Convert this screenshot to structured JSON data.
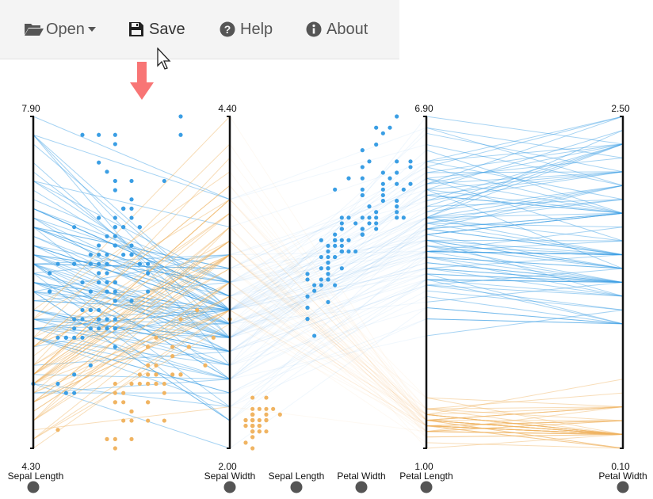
{
  "toolbar": {
    "open_label": "Open",
    "save_label": "Save",
    "help_label": "Help",
    "about_label": "About"
  },
  "colors": {
    "series_blue": "#3a9ee4",
    "series_orange": "#f0b462",
    "arrow": "#f87575",
    "axis": "#111111",
    "handle": "#555555"
  },
  "chart_data": {
    "type": "parallel-coordinates with embedded scatter plot",
    "axes": [
      {
        "label": "Sepal Length",
        "max": "7.90",
        "min": "4.30"
      },
      {
        "label": "Sepal Width",
        "max": "4.40",
        "min": "2.00"
      },
      {
        "label": "Petal Length",
        "max": "6.90",
        "min": "1.00"
      },
      {
        "label": "Petal Width",
        "max": "2.50",
        "min": "0.10"
      }
    ],
    "scatter_axis_labels": [
      "Sepal Length",
      "Petal Width"
    ],
    "series": [
      {
        "color": "#3a9ee4",
        "lines": [
          [
            7.9,
            3.8,
            6.4,
            2.0
          ],
          [
            7.7,
            3.8,
            6.7,
            2.2
          ],
          [
            7.7,
            2.6,
            6.9,
            2.3
          ],
          [
            7.7,
            2.8,
            6.7,
            2.0
          ],
          [
            7.7,
            3.0,
            6.1,
            2.3
          ],
          [
            7.6,
            3.0,
            6.6,
            2.1
          ],
          [
            7.4,
            2.8,
            6.1,
            1.9
          ],
          [
            7.3,
            2.9,
            6.3,
            1.8
          ],
          [
            7.2,
            3.6,
            6.1,
            2.5
          ],
          [
            7.2,
            3.2,
            6.0,
            1.8
          ],
          [
            7.2,
            3.0,
            5.8,
            1.6
          ],
          [
            7.1,
            3.0,
            5.9,
            2.1
          ],
          [
            7.0,
            3.2,
            4.7,
            1.4
          ],
          [
            6.9,
            3.1,
            4.9,
            1.5
          ],
          [
            6.9,
            3.2,
            5.7,
            2.3
          ],
          [
            6.9,
            3.1,
            5.4,
            2.1
          ],
          [
            6.9,
            3.1,
            5.1,
            2.3
          ],
          [
            6.8,
            2.8,
            4.8,
            1.4
          ],
          [
            6.8,
            3.0,
            5.5,
            2.1
          ],
          [
            6.8,
            3.2,
            5.9,
            2.3
          ],
          [
            6.7,
            3.1,
            4.4,
            1.4
          ],
          [
            6.7,
            3.0,
            5.0,
            1.7
          ],
          [
            6.7,
            3.1,
            4.7,
            1.5
          ],
          [
            6.7,
            2.5,
            5.8,
            1.8
          ],
          [
            6.7,
            3.3,
            5.7,
            2.1
          ],
          [
            6.7,
            3.3,
            5.7,
            2.5
          ],
          [
            6.7,
            3.0,
            5.2,
            2.3
          ],
          [
            6.6,
            2.9,
            4.6,
            1.3
          ],
          [
            6.6,
            3.0,
            4.4,
            1.4
          ],
          [
            6.5,
            2.8,
            4.6,
            1.5
          ],
          [
            6.5,
            3.0,
            5.8,
            2.2
          ],
          [
            6.5,
            3.2,
            5.1,
            2.0
          ],
          [
            6.5,
            3.0,
            5.5,
            1.8
          ],
          [
            6.5,
            3.0,
            5.2,
            2.0
          ],
          [
            6.4,
            3.2,
            4.5,
            1.5
          ],
          [
            6.4,
            2.9,
            4.3,
            1.3
          ],
          [
            6.4,
            2.7,
            5.3,
            1.9
          ],
          [
            6.4,
            3.2,
            5.3,
            2.3
          ],
          [
            6.4,
            2.8,
            5.6,
            2.1
          ],
          [
            6.4,
            3.1,
            5.5,
            1.8
          ],
          [
            6.3,
            3.3,
            4.7,
            1.6
          ],
          [
            6.3,
            2.5,
            4.9,
            1.5
          ],
          [
            6.3,
            2.3,
            4.4,
            1.3
          ],
          [
            6.3,
            3.3,
            6.0,
            2.5
          ],
          [
            6.3,
            2.9,
            5.6,
            1.8
          ],
          [
            6.3,
            2.7,
            4.9,
            1.8
          ],
          [
            6.3,
            2.8,
            5.1,
            1.5
          ],
          [
            6.3,
            3.4,
            5.6,
            2.4
          ],
          [
            6.3,
            2.5,
            5.0,
            1.9
          ],
          [
            6.2,
            2.2,
            4.5,
            1.5
          ],
          [
            6.2,
            2.9,
            4.3,
            1.3
          ],
          [
            6.2,
            2.8,
            4.8,
            1.8
          ],
          [
            6.2,
            3.4,
            5.4,
            2.3
          ],
          [
            6.1,
            2.9,
            4.7,
            1.4
          ],
          [
            6.1,
            2.8,
            4.0,
            1.3
          ],
          [
            6.1,
            2.8,
            4.7,
            1.2
          ],
          [
            6.1,
            3.0,
            4.6,
            1.4
          ],
          [
            6.1,
            3.0,
            4.9,
            1.8
          ],
          [
            6.1,
            2.6,
            5.6,
            1.4
          ],
          [
            6.0,
            2.2,
            4.0,
            1.0
          ],
          [
            6.0,
            2.9,
            4.5,
            1.5
          ],
          [
            6.0,
            2.7,
            5.1,
            1.6
          ],
          [
            6.0,
            3.4,
            4.5,
            1.6
          ],
          [
            6.0,
            2.2,
            5.0,
            1.5
          ],
          [
            6.0,
            3.0,
            4.8,
            1.8
          ],
          [
            5.9,
            3.0,
            4.2,
            1.5
          ],
          [
            5.9,
            3.2,
            4.8,
            1.8
          ],
          [
            5.9,
            3.0,
            5.1,
            1.8
          ],
          [
            5.8,
            2.7,
            4.1,
            1.0
          ],
          [
            5.8,
            2.7,
            3.9,
            1.2
          ],
          [
            5.8,
            2.6,
            4.0,
            1.2
          ],
          [
            5.8,
            2.7,
            5.1,
            1.9
          ],
          [
            5.8,
            2.8,
            5.1,
            2.4
          ],
          [
            5.7,
            2.8,
            4.5,
            1.3
          ],
          [
            5.7,
            2.6,
            3.5,
            1.0
          ],
          [
            5.7,
            3.0,
            4.2,
            1.2
          ],
          [
            5.7,
            2.9,
            4.2,
            1.3
          ],
          [
            5.7,
            2.8,
            4.1,
            1.3
          ],
          [
            5.7,
            2.5,
            5.0,
            2.0
          ],
          [
            5.6,
            2.9,
            3.6,
            1.3
          ],
          [
            5.6,
            3.0,
            4.5,
            1.5
          ],
          [
            5.6,
            2.5,
            3.9,
            1.1
          ],
          [
            5.6,
            3.0,
            4.1,
            1.3
          ],
          [
            5.6,
            2.7,
            4.2,
            1.3
          ],
          [
            5.6,
            2.8,
            4.9,
            2.0
          ],
          [
            5.5,
            2.3,
            4.0,
            1.3
          ],
          [
            5.5,
            2.4,
            3.8,
            1.1
          ],
          [
            5.5,
            2.4,
            3.7,
            1.0
          ],
          [
            5.5,
            2.5,
            4.0,
            1.3
          ],
          [
            5.5,
            2.6,
            4.4,
            1.2
          ],
          [
            5.4,
            3.0,
            4.5,
            1.5
          ],
          [
            5.2,
            2.7,
            3.9,
            1.4
          ],
          [
            5.1,
            2.5,
            3.0,
            1.1
          ],
          [
            5.0,
            2.0,
            3.5,
            1.0
          ],
          [
            5.0,
            2.3,
            3.3,
            1.0
          ],
          [
            4.9,
            2.4,
            3.3,
            1.0
          ],
          [
            4.9,
            2.5,
            4.5,
            1.7
          ]
        ]
      },
      {
        "color": "#f0b462",
        "lines": [
          [
            5.8,
            4.0,
            1.2,
            0.2
          ],
          [
            5.7,
            4.4,
            1.5,
            0.4
          ],
          [
            5.7,
            3.8,
            1.7,
            0.3
          ],
          [
            5.5,
            4.2,
            1.4,
            0.2
          ],
          [
            5.5,
            3.5,
            1.3,
            0.2
          ],
          [
            5.4,
            3.9,
            1.7,
            0.4
          ],
          [
            5.4,
            3.7,
            1.5,
            0.2
          ],
          [
            5.4,
            3.9,
            1.3,
            0.4
          ],
          [
            5.4,
            3.4,
            1.7,
            0.2
          ],
          [
            5.4,
            3.4,
            1.5,
            0.4
          ],
          [
            5.3,
            3.7,
            1.5,
            0.2
          ],
          [
            5.2,
            3.5,
            1.5,
            0.2
          ],
          [
            5.2,
            3.4,
            1.4,
            0.2
          ],
          [
            5.2,
            4.1,
            1.5,
            0.1
          ],
          [
            5.1,
            3.5,
            1.4,
            0.2
          ],
          [
            5.1,
            3.5,
            1.4,
            0.3
          ],
          [
            5.1,
            3.8,
            1.5,
            0.3
          ],
          [
            5.1,
            3.7,
            1.5,
            0.4
          ],
          [
            5.1,
            3.3,
            1.7,
            0.5
          ],
          [
            5.1,
            3.4,
            1.5,
            0.2
          ],
          [
            5.1,
            3.8,
            1.9,
            0.4
          ],
          [
            5.1,
            3.8,
            1.6,
            0.2
          ],
          [
            5.0,
            3.6,
            1.4,
            0.2
          ],
          [
            5.0,
            3.4,
            1.5,
            0.2
          ],
          [
            5.0,
            3.0,
            1.6,
            0.2
          ],
          [
            5.0,
            3.4,
            1.6,
            0.4
          ],
          [
            5.0,
            3.2,
            1.2,
            0.2
          ],
          [
            5.0,
            3.5,
            1.3,
            0.3
          ],
          [
            5.0,
            3.5,
            1.6,
            0.6
          ],
          [
            5.0,
            3.3,
            1.4,
            0.2
          ],
          [
            4.9,
            3.0,
            1.4,
            0.2
          ],
          [
            4.9,
            3.1,
            1.5,
            0.1
          ],
          [
            4.9,
            3.6,
            1.4,
            0.1
          ],
          [
            4.8,
            3.4,
            1.6,
            0.2
          ],
          [
            4.8,
            3.0,
            1.4,
            0.1
          ],
          [
            4.8,
            3.4,
            1.9,
            0.2
          ],
          [
            4.8,
            3.1,
            1.6,
            0.2
          ],
          [
            4.8,
            3.0,
            1.4,
            0.3
          ],
          [
            4.7,
            3.2,
            1.3,
            0.2
          ],
          [
            4.7,
            3.2,
            1.6,
            0.2
          ],
          [
            4.6,
            3.1,
            1.5,
            0.2
          ],
          [
            4.6,
            3.4,
            1.4,
            0.3
          ],
          [
            4.6,
            3.6,
            1.0,
            0.2
          ],
          [
            4.6,
            3.2,
            1.4,
            0.2
          ],
          [
            4.5,
            2.3,
            1.3,
            0.3
          ],
          [
            4.4,
            2.9,
            1.4,
            0.2
          ],
          [
            4.4,
            3.0,
            1.3,
            0.2
          ],
          [
            4.4,
            3.2,
            1.3,
            0.2
          ],
          [
            4.3,
            3.0,
            1.1,
            0.1
          ]
        ]
      }
    ]
  }
}
